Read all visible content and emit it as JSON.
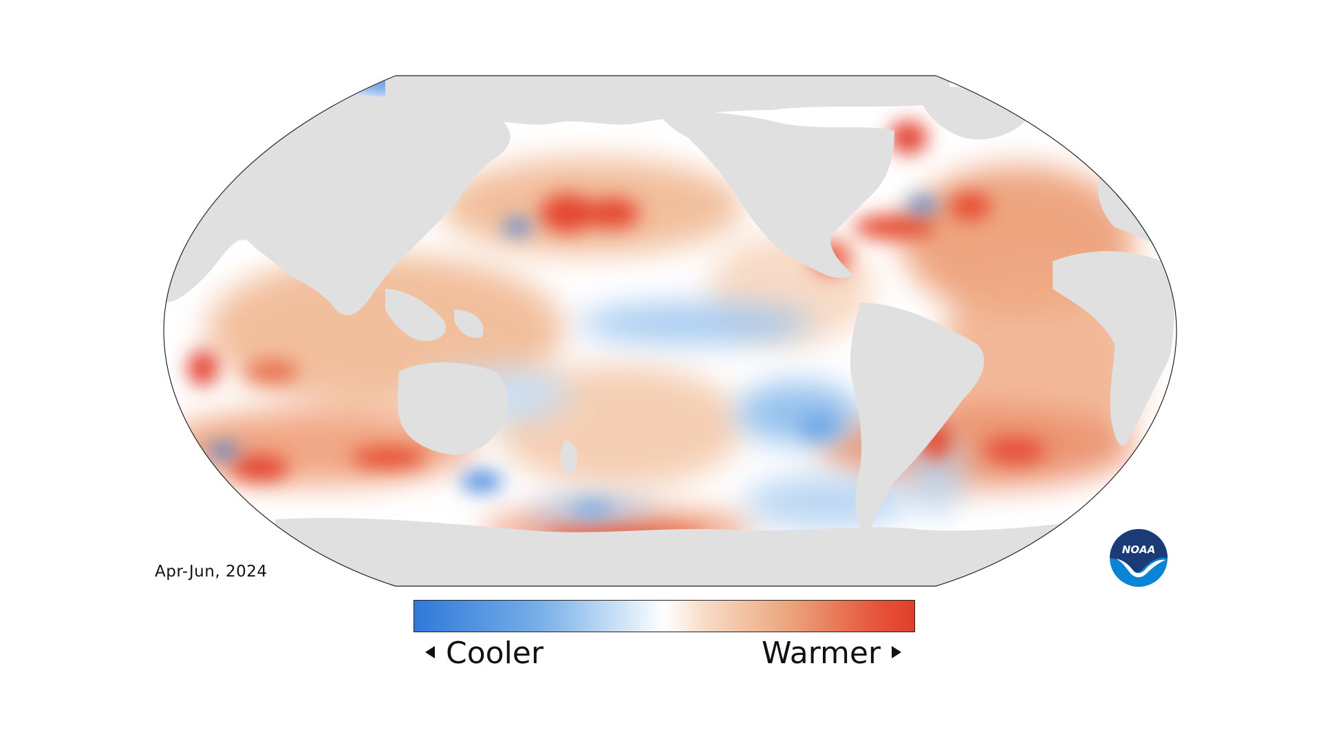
{
  "map": {
    "projection": "Robinson",
    "center": "Pacific",
    "land_color": "#e0e0e0",
    "ocean_neutral_color": "#ffffff",
    "warm_color": "#e23e2c",
    "cool_color": "#2f79d9"
  },
  "period_label": "Apr-Jun, 2024",
  "legend": {
    "cooler_label": "Cooler",
    "warmer_label": "Warmer",
    "colors": [
      "#2f79d9",
      "#77aee8",
      "#ffffff",
      "#eba57d",
      "#e23e2c"
    ]
  },
  "logo": {
    "text": "NOAA",
    "colors": [
      "#1b3a78",
      "#0a84d6",
      "#ffffff"
    ]
  }
}
